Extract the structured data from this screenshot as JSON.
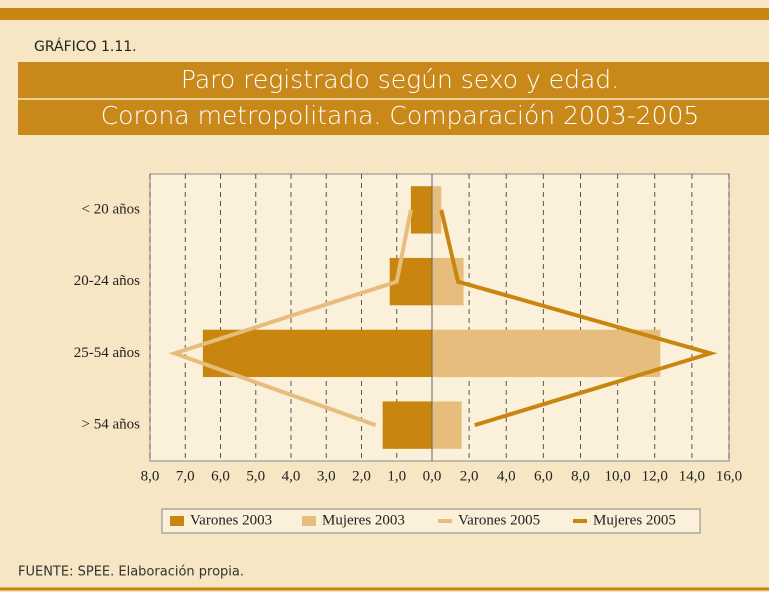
{
  "chart_data": {
    "type": "pyramid",
    "label": "GRÁFICO 1.11.",
    "title": [
      "Paro registrado según sexo y edad.",
      "Corona metropolitana. Comparación 2003-2005"
    ],
    "source": "FUENTE: SPEE. Elaboración propia.",
    "categories": [
      "< 20 años",
      "20-24 años",
      "25-54 años",
      "> 54 años"
    ],
    "xlim_left": [
      8,
      0
    ],
    "xlim_right": [
      0,
      16
    ],
    "xticks_left": [
      {
        "value": 8,
        "label": "8,0"
      },
      {
        "value": 7,
        "label": "7,0"
      },
      {
        "value": 6,
        "label": "6,0"
      },
      {
        "value": 5,
        "label": "5,0"
      },
      {
        "value": 4,
        "label": "4,0"
      },
      {
        "value": 3,
        "label": "3,0"
      },
      {
        "value": 2,
        "label": "2,0"
      },
      {
        "value": 1,
        "label": "1,0"
      }
    ],
    "xticks_right": [
      {
        "value": 0,
        "label": "0,0"
      },
      {
        "value": 2,
        "label": "2,0"
      },
      {
        "value": 4,
        "label": "4,0"
      },
      {
        "value": 6,
        "label": "6,0"
      },
      {
        "value": 8,
        "label": "8,0"
      },
      {
        "value": 10,
        "label": "10,0"
      },
      {
        "value": 12,
        "label": "12,0"
      },
      {
        "value": 14,
        "label": "14,0"
      },
      {
        "value": 16,
        "label": "16,0"
      }
    ],
    "grid": true,
    "series": [
      {
        "name": "Varones 2003",
        "color": "#c8860f",
        "kind": "bar",
        "side": "left",
        "values": [
          0.6,
          1.2,
          6.5,
          1.4
        ]
      },
      {
        "name": "Mujeres 2003",
        "color": "#e6bd7d",
        "kind": "bar",
        "side": "right",
        "values": [
          0.5,
          1.7,
          12.3,
          1.6
        ]
      },
      {
        "name": "Varones 2005",
        "color": "#e6bd7d",
        "kind": "line",
        "side": "left",
        "values": [
          0.6,
          1.0,
          7.3,
          1.6
        ]
      },
      {
        "name": "Mujeres 2005",
        "color": "#c8860f",
        "kind": "line",
        "side": "right",
        "values": [
          0.5,
          1.4,
          15.0,
          2.3
        ]
      }
    ]
  }
}
